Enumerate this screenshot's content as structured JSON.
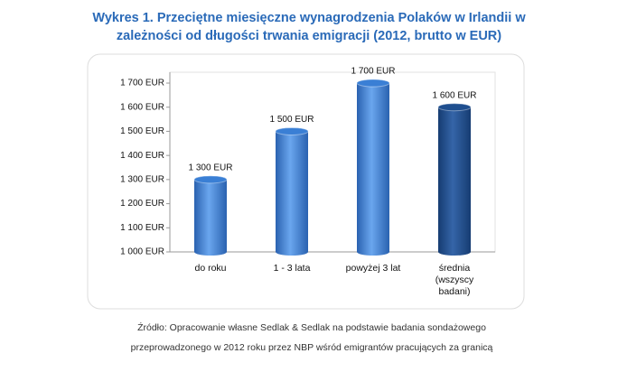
{
  "chart_data": {
    "type": "bar",
    "title": "Wykres 1. Przeciętne miesięczne wynagrodzenia Polaków w Irlandii w zależności od długości trwania emigracji (2012, brutto w EUR)",
    "source": "Źródło: Opracowanie własne Sedlak & Sedlak na podstawie badania sondażowego przeprowadzonego w 2012 roku przez NBP wśród emigrantów pracujących za granicą",
    "categories": [
      "do roku",
      "1 - 3 lata",
      "powyżej 3 lat",
      "średnia (wszyscy badani)"
    ],
    "values": [
      1300,
      1500,
      1700,
      1600
    ],
    "value_labels": [
      "1 300 EUR",
      "1 500 EUR",
      "1 700 EUR",
      "1 600 EUR"
    ],
    "colors": [
      "#3a7fd5",
      "#3a7fd5",
      "#3a7fd5",
      "#1f4f8f"
    ],
    "ylim": [
      1000,
      1745
    ],
    "yticks": [
      {
        "value": 1000,
        "label": "1 000 EUR"
      },
      {
        "value": 1100,
        "label": "1 100 EUR"
      },
      {
        "value": 1200,
        "label": "1 200 EUR"
      },
      {
        "value": 1300,
        "label": "1 300 EUR"
      },
      {
        "value": 1400,
        "label": "1 400 EUR"
      },
      {
        "value": 1500,
        "label": "1 500 EUR"
      },
      {
        "value": 1600,
        "label": "1 600 EUR"
      },
      {
        "value": 1700,
        "label": "1 700 EUR"
      }
    ],
    "grid": false
  }
}
